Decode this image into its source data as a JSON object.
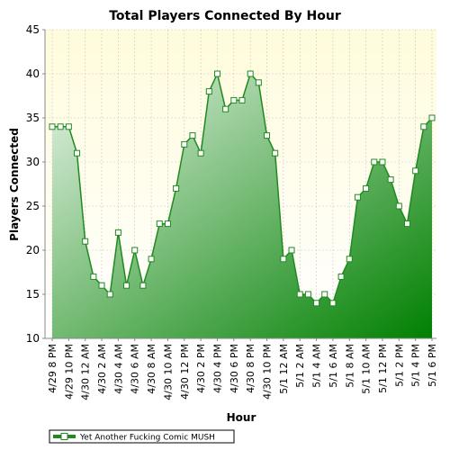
{
  "colors": {
    "plot_bg_top": "#fffcdc",
    "plot_bg_bottom": "#ffffff",
    "series_line": "#1f8a1f",
    "area_light": "#e6f3e6",
    "area_dark": "#008000",
    "gridline": "#c8c8c8"
  },
  "chart_data": {
    "type": "area",
    "title": "Total Players Connected By Hour",
    "xlabel": "Hour",
    "ylabel": "Players Connected",
    "ylim": [
      10,
      45
    ],
    "yticks": [
      10,
      15,
      20,
      25,
      30,
      35,
      40,
      45
    ],
    "grid": true,
    "legend_position": "bottom-left",
    "x_tick_labels": [
      "4/29 8 PM",
      "4/29 10 PM",
      "4/30 12 AM",
      "4/30 2 AM",
      "4/30 4 AM",
      "4/30 6 AM",
      "4/30 8 AM",
      "4/30 10 AM",
      "4/30 12 PM",
      "4/30 2 PM",
      "4/30 4 PM",
      "4/30 6 PM",
      "4/30 8 PM",
      "4/30 10 PM",
      "5/1 12 AM",
      "5/1 2 AM",
      "5/1 4 AM",
      "5/1 6 AM",
      "5/1 8 AM",
      "5/1 10 AM",
      "5/1 12 PM",
      "5/1 2 PM",
      "5/1 4 PM",
      "5/1 6 PM"
    ],
    "series": [
      {
        "name": "Yet Another Fucking Comic MUSH",
        "values": [
          34,
          34,
          34,
          31,
          21,
          17,
          16,
          15,
          22,
          16,
          20,
          16,
          19,
          23,
          23,
          27,
          32,
          33,
          31,
          38,
          40,
          36,
          37,
          37,
          40,
          39,
          33,
          31,
          19,
          20,
          15,
          15,
          14,
          15,
          14,
          17,
          19,
          26,
          27,
          30,
          30,
          28,
          25,
          23,
          29,
          34,
          35
        ]
      }
    ]
  }
}
